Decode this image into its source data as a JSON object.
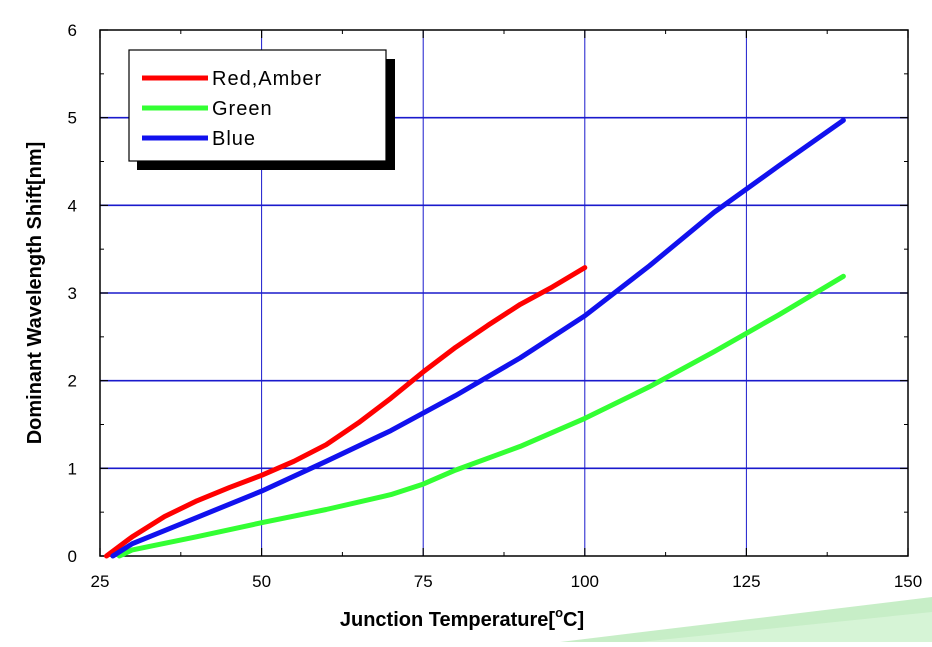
{
  "chart_data": {
    "type": "line",
    "title": "",
    "xlabel": "Junction Temperature[°C]",
    "xlabel_parts": {
      "main": "Junction Temperature[",
      "sup": "o",
      "unit": "C]"
    },
    "ylabel": "Dominant Wavelength Shift[nm]",
    "xlim": [
      25,
      150
    ],
    "ylim": [
      0,
      6
    ],
    "x_ticks": [
      25,
      50,
      75,
      100,
      125,
      150
    ],
    "y_ticks": [
      0,
      1,
      2,
      3,
      4,
      5,
      6
    ],
    "x_tick_labels": [
      "25",
      "50",
      "75",
      "100",
      "125",
      "150"
    ],
    "y_tick_labels": [
      "0",
      "1",
      "2",
      "3",
      "4",
      "5",
      "6"
    ],
    "grid": true,
    "grid_color": "#1a1acc",
    "legend_position": "top-left",
    "series": [
      {
        "name": "Red,Amber",
        "color": "#ff0000",
        "points": [
          [
            26,
            0
          ],
          [
            30,
            0.22
          ],
          [
            35,
            0.45
          ],
          [
            40,
            0.63
          ],
          [
            45,
            0.78
          ],
          [
            50,
            0.92
          ],
          [
            55,
            1.08
          ],
          [
            60,
            1.27
          ],
          [
            65,
            1.52
          ],
          [
            70,
            1.8
          ],
          [
            75,
            2.1
          ],
          [
            80,
            2.38
          ],
          [
            85,
            2.63
          ],
          [
            90,
            2.87
          ],
          [
            95,
            3.07
          ],
          [
            100,
            3.29
          ]
        ]
      },
      {
        "name": "Green",
        "color": "#33ff33",
        "points": [
          [
            28,
            0
          ],
          [
            30,
            0.07
          ],
          [
            40,
            0.22
          ],
          [
            50,
            0.38
          ],
          [
            60,
            0.53
          ],
          [
            70,
            0.7
          ],
          [
            75,
            0.82
          ],
          [
            80,
            0.98
          ],
          [
            90,
            1.25
          ],
          [
            100,
            1.57
          ],
          [
            110,
            1.93
          ],
          [
            120,
            2.33
          ],
          [
            130,
            2.75
          ],
          [
            140,
            3.19
          ]
        ]
      },
      {
        "name": "Blue",
        "color": "#1111ee",
        "points": [
          [
            27,
            0
          ],
          [
            30,
            0.14
          ],
          [
            40,
            0.44
          ],
          [
            50,
            0.74
          ],
          [
            60,
            1.08
          ],
          [
            70,
            1.43
          ],
          [
            75,
            1.63
          ],
          [
            80,
            1.83
          ],
          [
            90,
            2.26
          ],
          [
            100,
            2.74
          ],
          [
            110,
            3.31
          ],
          [
            120,
            3.92
          ],
          [
            130,
            4.45
          ],
          [
            140,
            4.97
          ]
        ]
      }
    ]
  }
}
